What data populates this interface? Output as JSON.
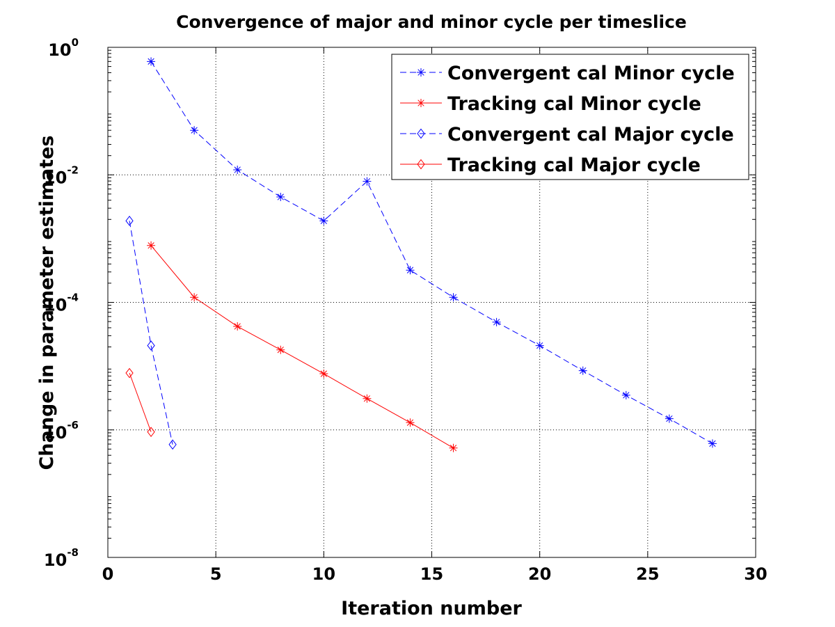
{
  "chart_data": {
    "type": "line",
    "title": "Convergence of major and minor cycle per timeslice",
    "xlabel": "Iteration number",
    "ylabel": "Change in parameter estimates",
    "xlim": [
      0,
      30
    ],
    "ylim": [
      1e-08,
      1
    ],
    "y_scale": "log",
    "x_ticks": [
      "0",
      "5",
      "10",
      "15",
      "20",
      "25",
      "30"
    ],
    "y_ticks": [
      {
        "base": "10",
        "exp": "0"
      },
      {
        "base": "10",
        "exp": "-2"
      },
      {
        "base": "10",
        "exp": "-4"
      },
      {
        "base": "10",
        "exp": "-6"
      },
      {
        "base": "10",
        "exp": "-8"
      }
    ],
    "grid": true,
    "legend_position": "top-right",
    "series": [
      {
        "name": "Convergent cal Minor cycle",
        "color": "#0000ff",
        "line_style": "dashed",
        "marker": "asterisk",
        "x": [
          2,
          4,
          6,
          8,
          10,
          12,
          14,
          16,
          18,
          20,
          22,
          24,
          26,
          28
        ],
        "y": [
          0.6,
          0.05,
          0.012,
          0.0045,
          0.0019,
          0.0079,
          0.00032,
          0.00012,
          4.9e-05,
          2.1e-05,
          8.5e-06,
          3.5e-06,
          1.5e-06,
          6.1e-07
        ]
      },
      {
        "name": "Tracking cal Minor cycle",
        "color": "#ff0000",
        "line_style": "solid",
        "marker": "asterisk",
        "x": [
          2,
          4,
          6,
          8,
          10,
          12,
          14,
          16
        ],
        "y": [
          0.00078,
          0.00012,
          4.2e-05,
          1.8e-05,
          7.6e-06,
          3.1e-06,
          1.3e-06,
          5.2e-07
        ]
      },
      {
        "name": "Convergent cal Major cycle",
        "color": "#0000ff",
        "line_style": "dashed",
        "marker": "diamond",
        "x": [
          1,
          2,
          3
        ],
        "y": [
          0.0019,
          2.1e-05,
          5.9e-07
        ]
      },
      {
        "name": "Tracking cal Major cycle",
        "color": "#ff0000",
        "line_style": "solid",
        "marker": "diamond",
        "x": [
          1,
          2
        ],
        "y": [
          7.8e-06,
          9.3e-07
        ]
      }
    ]
  }
}
